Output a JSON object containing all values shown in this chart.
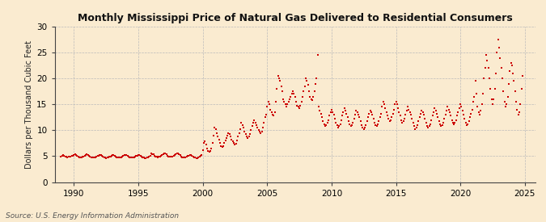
{
  "title": "Monthly Mississippi Price of Natural Gas Delivered to Residential Consumers",
  "ylabel": "Dollars per Thousand Cubic Feet",
  "source": "Source: U.S. Energy Information Administration",
  "background_color": "#faebd0",
  "dot_color": "#cc0000",
  "xlim": [
    1988.5,
    2025.8
  ],
  "ylim": [
    0,
    30
  ],
  "yticks": [
    0,
    5,
    10,
    15,
    20,
    25,
    30
  ],
  "xticks": [
    1990,
    1995,
    2000,
    2005,
    2010,
    2015,
    2020,
    2025
  ],
  "data": [
    [
      1989.0,
      4.98
    ],
    [
      1989.083,
      5.02
    ],
    [
      1989.167,
      5.15
    ],
    [
      1989.25,
      5.08
    ],
    [
      1989.333,
      4.95
    ],
    [
      1989.417,
      4.88
    ],
    [
      1989.5,
      4.82
    ],
    [
      1989.583,
      4.85
    ],
    [
      1989.667,
      4.9
    ],
    [
      1989.75,
      4.95
    ],
    [
      1989.833,
      5.05
    ],
    [
      1989.917,
      5.1
    ],
    [
      1990.0,
      5.2
    ],
    [
      1990.083,
      5.3
    ],
    [
      1990.167,
      5.15
    ],
    [
      1990.25,
      5.05
    ],
    [
      1990.333,
      4.9
    ],
    [
      1990.417,
      4.8
    ],
    [
      1990.5,
      4.75
    ],
    [
      1990.583,
      4.78
    ],
    [
      1990.667,
      4.85
    ],
    [
      1990.75,
      4.95
    ],
    [
      1990.833,
      5.1
    ],
    [
      1990.917,
      5.2
    ],
    [
      1991.0,
      5.3
    ],
    [
      1991.083,
      5.25
    ],
    [
      1991.167,
      5.1
    ],
    [
      1991.25,
      4.95
    ],
    [
      1991.333,
      4.82
    ],
    [
      1991.417,
      4.75
    ],
    [
      1991.5,
      4.7
    ],
    [
      1991.583,
      4.72
    ],
    [
      1991.667,
      4.8
    ],
    [
      1991.75,
      4.9
    ],
    [
      1991.833,
      5.0
    ],
    [
      1991.917,
      5.12
    ],
    [
      1992.0,
      5.2
    ],
    [
      1992.083,
      5.15
    ],
    [
      1992.167,
      5.05
    ],
    [
      1992.25,
      4.9
    ],
    [
      1992.333,
      4.78
    ],
    [
      1992.417,
      4.7
    ],
    [
      1992.5,
      4.65
    ],
    [
      1992.583,
      4.68
    ],
    [
      1992.667,
      4.75
    ],
    [
      1992.75,
      4.85
    ],
    [
      1992.833,
      4.98
    ],
    [
      1992.917,
      5.08
    ],
    [
      1993.0,
      5.18
    ],
    [
      1993.083,
      5.22
    ],
    [
      1993.167,
      5.1
    ],
    [
      1993.25,
      4.95
    ],
    [
      1993.333,
      4.82
    ],
    [
      1993.417,
      4.75
    ],
    [
      1993.5,
      4.7
    ],
    [
      1993.583,
      4.73
    ],
    [
      1993.667,
      4.82
    ],
    [
      1993.75,
      4.92
    ],
    [
      1993.833,
      5.05
    ],
    [
      1993.917,
      5.15
    ],
    [
      1994.0,
      5.25
    ],
    [
      1994.083,
      5.2
    ],
    [
      1994.167,
      5.08
    ],
    [
      1994.25,
      4.92
    ],
    [
      1994.333,
      4.8
    ],
    [
      1994.417,
      4.72
    ],
    [
      1994.5,
      4.68
    ],
    [
      1994.583,
      4.7
    ],
    [
      1994.667,
      4.78
    ],
    [
      1994.75,
      4.88
    ],
    [
      1994.833,
      5.02
    ],
    [
      1994.917,
      5.12
    ],
    [
      1995.0,
      5.22
    ],
    [
      1995.083,
      5.18
    ],
    [
      1995.167,
      5.05
    ],
    [
      1995.25,
      4.88
    ],
    [
      1995.333,
      4.75
    ],
    [
      1995.417,
      4.68
    ],
    [
      1995.5,
      4.62
    ],
    [
      1995.583,
      4.65
    ],
    [
      1995.667,
      4.73
    ],
    [
      1995.75,
      4.83
    ],
    [
      1995.833,
      4.95
    ],
    [
      1995.917,
      5.05
    ],
    [
      1996.0,
      5.5
    ],
    [
      1996.083,
      5.45
    ],
    [
      1996.167,
      5.3
    ],
    [
      1996.25,
      5.1
    ],
    [
      1996.333,
      4.95
    ],
    [
      1996.417,
      4.88
    ],
    [
      1996.5,
      4.82
    ],
    [
      1996.583,
      4.85
    ],
    [
      1996.667,
      4.92
    ],
    [
      1996.75,
      5.05
    ],
    [
      1996.833,
      5.2
    ],
    [
      1996.917,
      5.38
    ],
    [
      1997.0,
      5.55
    ],
    [
      1997.083,
      5.48
    ],
    [
      1997.167,
      5.32
    ],
    [
      1997.25,
      5.12
    ],
    [
      1997.333,
      4.98
    ],
    [
      1997.417,
      4.9
    ],
    [
      1997.5,
      4.85
    ],
    [
      1997.583,
      4.88
    ],
    [
      1997.667,
      4.95
    ],
    [
      1997.75,
      5.08
    ],
    [
      1997.833,
      5.25
    ],
    [
      1997.917,
      5.45
    ],
    [
      1998.0,
      5.6
    ],
    [
      1998.083,
      5.52
    ],
    [
      1998.167,
      5.35
    ],
    [
      1998.25,
      5.15
    ],
    [
      1998.333,
      4.95
    ],
    [
      1998.417,
      4.8
    ],
    [
      1998.5,
      4.7
    ],
    [
      1998.583,
      4.72
    ],
    [
      1998.667,
      4.78
    ],
    [
      1998.75,
      4.88
    ],
    [
      1998.833,
      5.0
    ],
    [
      1998.917,
      5.12
    ],
    [
      1999.0,
      5.2
    ],
    [
      1999.083,
      5.15
    ],
    [
      1999.167,
      5.02
    ],
    [
      1999.25,
      4.88
    ],
    [
      1999.333,
      4.75
    ],
    [
      1999.417,
      4.68
    ],
    [
      1999.5,
      4.62
    ],
    [
      1999.583,
      4.65
    ],
    [
      1999.667,
      4.72
    ],
    [
      1999.75,
      4.85
    ],
    [
      1999.833,
      5.0
    ],
    [
      1999.917,
      5.18
    ],
    [
      2000.0,
      6.2
    ],
    [
      2000.083,
      7.5
    ],
    [
      2000.167,
      7.8
    ],
    [
      2000.25,
      7.2
    ],
    [
      2000.333,
      6.5
    ],
    [
      2000.417,
      6.0
    ],
    [
      2000.5,
      5.8
    ],
    [
      2000.583,
      6.0
    ],
    [
      2000.667,
      6.5
    ],
    [
      2000.75,
      7.5
    ],
    [
      2000.833,
      9.0
    ],
    [
      2000.917,
      10.5
    ],
    [
      2001.0,
      10.2
    ],
    [
      2001.083,
      9.5
    ],
    [
      2001.167,
      8.8
    ],
    [
      2001.25,
      8.2
    ],
    [
      2001.333,
      7.5
    ],
    [
      2001.417,
      7.0
    ],
    [
      2001.5,
      6.8
    ],
    [
      2001.583,
      7.0
    ],
    [
      2001.667,
      7.5
    ],
    [
      2001.75,
      8.0
    ],
    [
      2001.833,
      8.5
    ],
    [
      2001.917,
      9.0
    ],
    [
      2002.0,
      9.5
    ],
    [
      2002.083,
      9.2
    ],
    [
      2002.167,
      8.8
    ],
    [
      2002.25,
      8.2
    ],
    [
      2002.333,
      7.8
    ],
    [
      2002.417,
      7.5
    ],
    [
      2002.5,
      7.2
    ],
    [
      2002.583,
      7.4
    ],
    [
      2002.667,
      8.0
    ],
    [
      2002.75,
      8.8
    ],
    [
      2002.833,
      9.5
    ],
    [
      2002.917,
      10.2
    ],
    [
      2003.0,
      11.5
    ],
    [
      2003.083,
      11.0
    ],
    [
      2003.167,
      10.5
    ],
    [
      2003.25,
      9.8
    ],
    [
      2003.333,
      9.2
    ],
    [
      2003.417,
      8.8
    ],
    [
      2003.5,
      8.5
    ],
    [
      2003.583,
      8.8
    ],
    [
      2003.667,
      9.2
    ],
    [
      2003.75,
      10.0
    ],
    [
      2003.833,
      10.8
    ],
    [
      2003.917,
      11.5
    ],
    [
      2004.0,
      12.0
    ],
    [
      2004.083,
      11.5
    ],
    [
      2004.167,
      11.0
    ],
    [
      2004.25,
      10.5
    ],
    [
      2004.333,
      10.0
    ],
    [
      2004.417,
      9.8
    ],
    [
      2004.5,
      9.5
    ],
    [
      2004.583,
      9.8
    ],
    [
      2004.667,
      10.5
    ],
    [
      2004.75,
      11.5
    ],
    [
      2004.833,
      12.5
    ],
    [
      2004.917,
      13.0
    ],
    [
      2005.0,
      14.5
    ],
    [
      2005.083,
      15.5
    ],
    [
      2005.167,
      15.0
    ],
    [
      2005.25,
      14.0
    ],
    [
      2005.333,
      13.5
    ],
    [
      2005.417,
      13.0
    ],
    [
      2005.5,
      12.8
    ],
    [
      2005.583,
      13.5
    ],
    [
      2005.667,
      15.5
    ],
    [
      2005.75,
      18.0
    ],
    [
      2005.833,
      20.5
    ],
    [
      2005.917,
      20.0
    ],
    [
      2006.0,
      19.5
    ],
    [
      2006.083,
      18.5
    ],
    [
      2006.167,
      17.5
    ],
    [
      2006.25,
      16.0
    ],
    [
      2006.333,
      15.5
    ],
    [
      2006.417,
      15.0
    ],
    [
      2006.5,
      14.5
    ],
    [
      2006.583,
      15.0
    ],
    [
      2006.667,
      15.5
    ],
    [
      2006.75,
      16.0
    ],
    [
      2006.833,
      16.5
    ],
    [
      2006.917,
      17.0
    ],
    [
      2007.0,
      17.5
    ],
    [
      2007.083,
      17.0
    ],
    [
      2007.167,
      16.5
    ],
    [
      2007.25,
      15.5
    ],
    [
      2007.333,
      14.8
    ],
    [
      2007.417,
      14.5
    ],
    [
      2007.5,
      14.2
    ],
    [
      2007.583,
      14.8
    ],
    [
      2007.667,
      15.5
    ],
    [
      2007.75,
      16.5
    ],
    [
      2007.833,
      17.5
    ],
    [
      2007.917,
      18.5
    ],
    [
      2008.0,
      20.0
    ],
    [
      2008.083,
      19.5
    ],
    [
      2008.167,
      18.8
    ],
    [
      2008.25,
      17.5
    ],
    [
      2008.333,
      16.5
    ],
    [
      2008.417,
      16.0
    ],
    [
      2008.5,
      15.8
    ],
    [
      2008.583,
      16.5
    ],
    [
      2008.667,
      17.5
    ],
    [
      2008.75,
      19.0
    ],
    [
      2008.833,
      20.0
    ],
    [
      2008.917,
      24.5
    ],
    [
      2009.0,
      14.5
    ],
    [
      2009.083,
      13.8
    ],
    [
      2009.167,
      13.2
    ],
    [
      2009.25,
      12.5
    ],
    [
      2009.333,
      11.8
    ],
    [
      2009.417,
      11.2
    ],
    [
      2009.5,
      10.8
    ],
    [
      2009.583,
      11.0
    ],
    [
      2009.667,
      11.5
    ],
    [
      2009.75,
      12.0
    ],
    [
      2009.833,
      12.8
    ],
    [
      2009.917,
      13.5
    ],
    [
      2010.0,
      14.0
    ],
    [
      2010.083,
      13.5
    ],
    [
      2010.167,
      13.0
    ],
    [
      2010.25,
      12.2
    ],
    [
      2010.333,
      11.5
    ],
    [
      2010.417,
      11.0
    ],
    [
      2010.5,
      10.5
    ],
    [
      2010.583,
      10.8
    ],
    [
      2010.667,
      11.2
    ],
    [
      2010.75,
      12.0
    ],
    [
      2010.833,
      12.8
    ],
    [
      2010.917,
      13.5
    ],
    [
      2011.0,
      14.2
    ],
    [
      2011.083,
      13.8
    ],
    [
      2011.167,
      13.2
    ],
    [
      2011.25,
      12.5
    ],
    [
      2011.333,
      11.8
    ],
    [
      2011.417,
      11.2
    ],
    [
      2011.5,
      10.8
    ],
    [
      2011.583,
      11.0
    ],
    [
      2011.667,
      11.5
    ],
    [
      2011.75,
      12.2
    ],
    [
      2011.833,
      13.0
    ],
    [
      2011.917,
      13.8
    ],
    [
      2012.0,
      13.5
    ],
    [
      2012.083,
      13.0
    ],
    [
      2012.167,
      12.5
    ],
    [
      2012.25,
      11.8
    ],
    [
      2012.333,
      11.0
    ],
    [
      2012.417,
      10.5
    ],
    [
      2012.5,
      10.2
    ],
    [
      2012.583,
      10.5
    ],
    [
      2012.667,
      11.0
    ],
    [
      2012.75,
      11.8
    ],
    [
      2012.833,
      12.5
    ],
    [
      2012.917,
      13.2
    ],
    [
      2013.0,
      13.8
    ],
    [
      2013.083,
      13.5
    ],
    [
      2013.167,
      13.0
    ],
    [
      2013.25,
      12.2
    ],
    [
      2013.333,
      11.5
    ],
    [
      2013.417,
      11.0
    ],
    [
      2013.5,
      10.8
    ],
    [
      2013.583,
      11.2
    ],
    [
      2013.667,
      11.8
    ],
    [
      2013.75,
      12.5
    ],
    [
      2013.833,
      13.2
    ],
    [
      2013.917,
      14.5
    ],
    [
      2014.0,
      15.5
    ],
    [
      2014.083,
      15.0
    ],
    [
      2014.167,
      14.2
    ],
    [
      2014.25,
      13.5
    ],
    [
      2014.333,
      12.8
    ],
    [
      2014.417,
      12.2
    ],
    [
      2014.5,
      11.8
    ],
    [
      2014.583,
      12.0
    ],
    [
      2014.667,
      12.5
    ],
    [
      2014.75,
      13.2
    ],
    [
      2014.833,
      14.0
    ],
    [
      2014.917,
      15.0
    ],
    [
      2015.0,
      15.5
    ],
    [
      2015.083,
      15.0
    ],
    [
      2015.167,
      14.2
    ],
    [
      2015.25,
      13.5
    ],
    [
      2015.333,
      12.8
    ],
    [
      2015.417,
      12.0
    ],
    [
      2015.5,
      11.5
    ],
    [
      2015.583,
      11.8
    ],
    [
      2015.667,
      12.2
    ],
    [
      2015.75,
      13.0
    ],
    [
      2015.833,
      13.8
    ],
    [
      2015.917,
      14.5
    ],
    [
      2016.0,
      14.0
    ],
    [
      2016.083,
      13.5
    ],
    [
      2016.167,
      13.0
    ],
    [
      2016.25,
      12.2
    ],
    [
      2016.333,
      11.5
    ],
    [
      2016.417,
      10.8
    ],
    [
      2016.5,
      10.2
    ],
    [
      2016.583,
      10.5
    ],
    [
      2016.667,
      11.0
    ],
    [
      2016.75,
      11.8
    ],
    [
      2016.833,
      12.5
    ],
    [
      2016.917,
      13.2
    ],
    [
      2017.0,
      13.8
    ],
    [
      2017.083,
      13.5
    ],
    [
      2017.167,
      13.0
    ],
    [
      2017.25,
      12.2
    ],
    [
      2017.333,
      11.5
    ],
    [
      2017.417,
      10.8
    ],
    [
      2017.5,
      10.5
    ],
    [
      2017.583,
      10.8
    ],
    [
      2017.667,
      11.2
    ],
    [
      2017.75,
      12.0
    ],
    [
      2017.833,
      12.8
    ],
    [
      2017.917,
      13.5
    ],
    [
      2018.0,
      14.2
    ],
    [
      2018.083,
      13.8
    ],
    [
      2018.167,
      13.2
    ],
    [
      2018.25,
      12.5
    ],
    [
      2018.333,
      11.8
    ],
    [
      2018.417,
      11.2
    ],
    [
      2018.5,
      10.8
    ],
    [
      2018.583,
      11.0
    ],
    [
      2018.667,
      11.5
    ],
    [
      2018.75,
      12.2
    ],
    [
      2018.833,
      13.0
    ],
    [
      2018.917,
      13.8
    ],
    [
      2019.0,
      14.5
    ],
    [
      2019.083,
      14.0
    ],
    [
      2019.167,
      13.5
    ],
    [
      2019.25,
      12.8
    ],
    [
      2019.333,
      12.0
    ],
    [
      2019.417,
      11.5
    ],
    [
      2019.5,
      11.2
    ],
    [
      2019.583,
      11.5
    ],
    [
      2019.667,
      12.0
    ],
    [
      2019.75,
      12.8
    ],
    [
      2019.833,
      13.5
    ],
    [
      2019.917,
      14.2
    ],
    [
      2020.0,
      15.0
    ],
    [
      2020.083,
      14.5
    ],
    [
      2020.167,
      13.8
    ],
    [
      2020.25,
      13.0
    ],
    [
      2020.333,
      12.2
    ],
    [
      2020.417,
      11.5
    ],
    [
      2020.5,
      11.0
    ],
    [
      2020.583,
      11.2
    ],
    [
      2020.667,
      11.8
    ],
    [
      2020.75,
      12.5
    ],
    [
      2020.833,
      13.2
    ],
    [
      2020.917,
      14.0
    ],
    [
      2021.0,
      15.5
    ],
    [
      2021.083,
      16.5
    ],
    [
      2021.167,
      19.5
    ],
    [
      2021.25,
      17.0
    ],
    [
      2021.333,
      14.5
    ],
    [
      2021.417,
      13.5
    ],
    [
      2021.5,
      13.0
    ],
    [
      2021.583,
      13.8
    ],
    [
      2021.667,
      15.0
    ],
    [
      2021.75,
      17.0
    ],
    [
      2021.833,
      20.0
    ],
    [
      2021.917,
      22.0
    ],
    [
      2022.0,
      24.5
    ],
    [
      2022.083,
      23.5
    ],
    [
      2022.167,
      22.0
    ],
    [
      2022.25,
      20.0
    ],
    [
      2022.333,
      18.0
    ],
    [
      2022.417,
      16.0
    ],
    [
      2022.5,
      15.0
    ],
    [
      2022.583,
      16.0
    ],
    [
      2022.667,
      18.0
    ],
    [
      2022.75,
      21.0
    ],
    [
      2022.833,
      25.0
    ],
    [
      2022.917,
      27.5
    ],
    [
      2023.0,
      26.0
    ],
    [
      2023.083,
      24.0
    ],
    [
      2023.167,
      22.0
    ],
    [
      2023.25,
      20.0
    ],
    [
      2023.333,
      17.5
    ],
    [
      2023.417,
      15.5
    ],
    [
      2023.5,
      14.5
    ],
    [
      2023.583,
      15.0
    ],
    [
      2023.667,
      16.5
    ],
    [
      2023.75,
      19.0
    ],
    [
      2023.833,
      21.5
    ],
    [
      2023.917,
      23.0
    ],
    [
      2024.0,
      22.5
    ],
    [
      2024.083,
      21.0
    ],
    [
      2024.167,
      19.5
    ],
    [
      2024.25,
      17.5
    ],
    [
      2024.333,
      15.5
    ],
    [
      2024.417,
      14.0
    ],
    [
      2024.5,
      13.0
    ],
    [
      2024.583,
      13.5
    ],
    [
      2024.667,
      15.0
    ],
    [
      2024.75,
      18.0
    ],
    [
      2024.833,
      20.5
    ]
  ]
}
